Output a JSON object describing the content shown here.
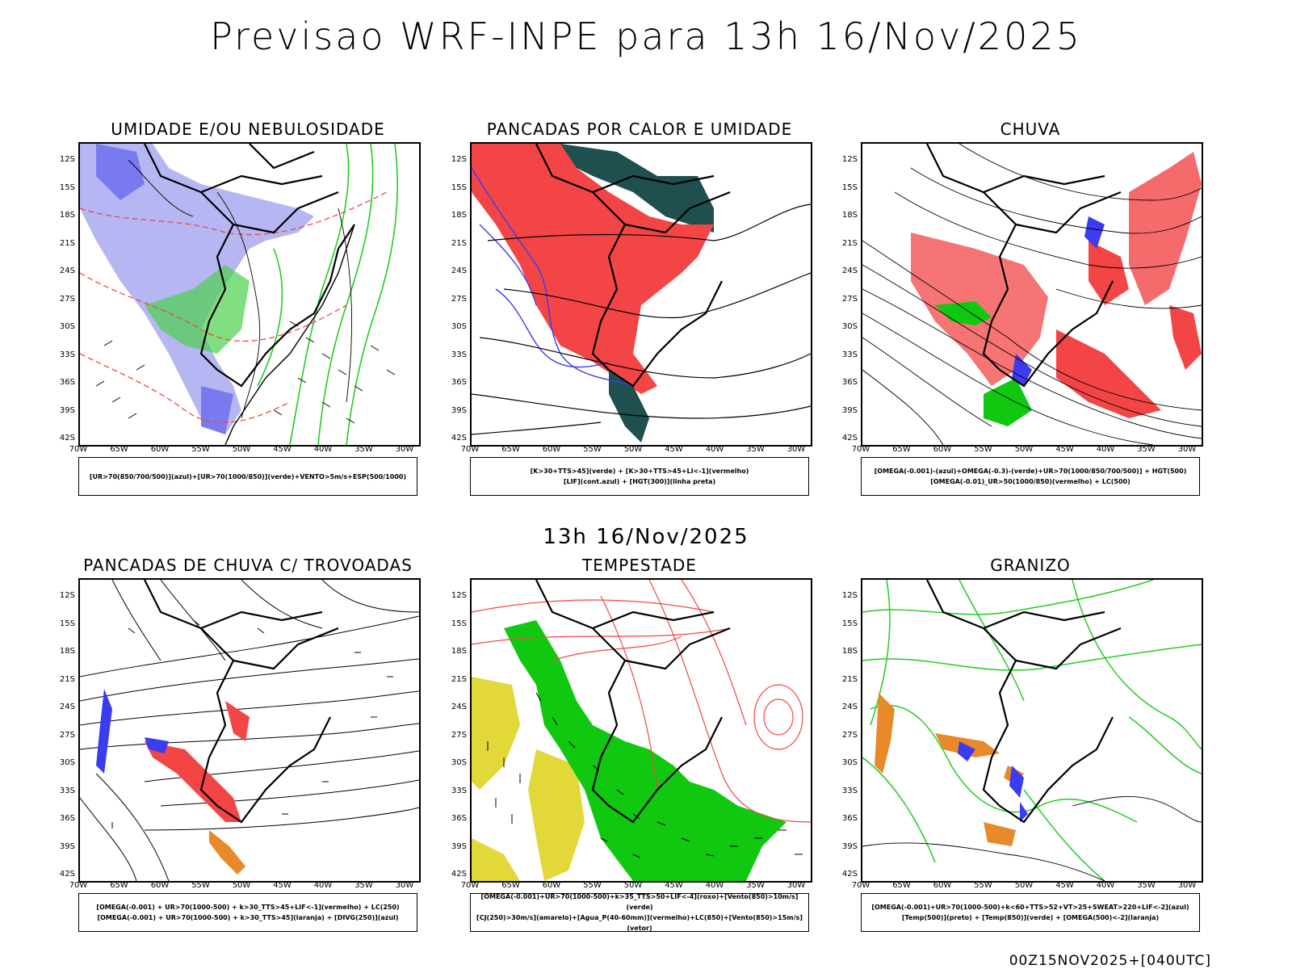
{
  "title": "Previsao WRF-INPE  para 13h 16/Nov/2025",
  "mid_time": "13h 16/Nov/2025",
  "footer": "00Z15NOV2025+[040UTC]",
  "axes": {
    "lat_labels": [
      "12S",
      "15S",
      "18S",
      "21S",
      "24S",
      "27S",
      "30S",
      "33S",
      "36S",
      "39S",
      "42S"
    ],
    "lon_labels": [
      "70W",
      "65W",
      "60W",
      "55W",
      "50W",
      "45W",
      "40W",
      "35W",
      "30W"
    ]
  },
  "colors": {
    "light_blue": "#a9a9f0",
    "blue": "#3b3bef",
    "green": "#22cc22",
    "bright_green": "#11c811",
    "red": "#f34545",
    "dark_teal": "#1f4f4f",
    "yellow": "#e2d83a",
    "orange": "#e88a2a"
  },
  "panels": [
    {
      "title": "UMIDADE E/OU NEBULOSIDADE",
      "legend": [
        "[UR>70(850/700/500)](azul)+[UR>70(1000/850)](verde)+VENTO>5m/s+ESP(500/1000)"
      ]
    },
    {
      "title": "PANCADAS POR CALOR E UMIDADE",
      "legend": [
        "[K>30+TTS>45](verde) + [K>30+TTS>45+LI<-1](vermelho)",
        "[LIF](cont.azul) + [HGT(300)](linha preta)"
      ]
    },
    {
      "title": "CHUVA",
      "legend": [
        "[OMEGA(-0.001)-(azul)+OMEGA(-0.3)-(verde)+UR>70(1000/850/700/500)] + HGT(500)",
        "[OMEGA(-0.01)_UR>50(1000/850)(vermelho) + LC(500)"
      ]
    },
    {
      "title": "PANCADAS DE CHUVA C/ TROVOADAS",
      "legend": [
        "[OMEGA(-0.001) + UR>70(1000-500) + k>30_TTS>45+LIF<-1](vermelho) + LC(250)",
        "[OMEGA(-0.001) + UR>70(1000-500) + k>30_TTS>45](laranja) + [DIVG(250)](azul)"
      ]
    },
    {
      "title": "TEMPESTADE",
      "legend": [
        "[OMEGA(-0.001)+UR>70(1000-500)+k>35_TTS>50+LIF<-4](roxo)+[Vento(850)>10m/s](verde)",
        "[CJ(250)>30m/s](amarelo)+[Agua_P(40-60mm)](vermelho)+LC(850)+[Vento(850)>15m/s](vetor)"
      ]
    },
    {
      "title": "GRANIZO",
      "legend": [
        "[OMEGA(-0.001)+UR>70(1000-500)+k<60+TTS>52+VT>25+SWEAT>220+LIF<-2](azul)",
        "[Temp(500)](preto) + [Temp(850)](verde) + [OMEGA(500)<-2](laranja)"
      ]
    }
  ]
}
